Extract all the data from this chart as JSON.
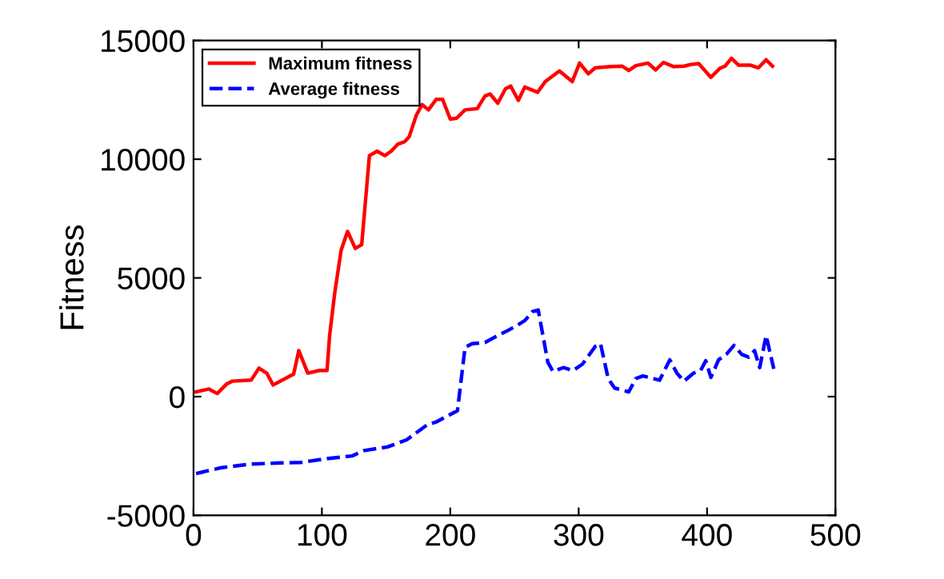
{
  "chart_data": {
    "type": "line",
    "ylabel": "Fitness",
    "xlim": [
      0,
      500
    ],
    "ylim": [
      -5000,
      15000
    ],
    "xticks": [
      0,
      100,
      200,
      300,
      400,
      500
    ],
    "yticks": [
      -5000,
      0,
      5000,
      10000,
      15000
    ],
    "grid": false,
    "legend": "top left",
    "marker": "none",
    "series": [
      {
        "name": "Maximum fitness",
        "color": "#ff0000",
        "line_style": "solid",
        "x": [
          2,
          12,
          18.5,
          26,
          30,
          45,
          51,
          57,
          62,
          78,
          82,
          89,
          98,
          104,
          106,
          110,
          115,
          120,
          126,
          131,
          137,
          143,
          149,
          154,
          159,
          164.5,
          168,
          173.5,
          178,
          183,
          189,
          194,
          200,
          205,
          211.5,
          221,
          227,
          231,
          237,
          243,
          247,
          253,
          258,
          268,
          274,
          285,
          295,
          300.7,
          307.5,
          313,
          325,
          334,
          339,
          344.5,
          354,
          360,
          366,
          374,
          382,
          387.5,
          393.5,
          403,
          410,
          414,
          419,
          424.6,
          434,
          440,
          446,
          451
        ],
        "values": [
          200,
          320,
          130,
          540,
          650,
          700,
          1200,
          990,
          490,
          950,
          1940,
          990,
          1100,
          1100,
          2570,
          4370,
          6170,
          6960,
          6240,
          6400,
          10150,
          10340,
          10150,
          10340,
          10630,
          10740,
          10950,
          11850,
          12300,
          12080,
          12520,
          12520,
          11690,
          11730,
          12080,
          12130,
          12660,
          12750,
          12360,
          12970,
          13080,
          12480,
          13040,
          12820,
          13270,
          13720,
          13270,
          14050,
          13600,
          13850,
          13900,
          13920,
          13740,
          13940,
          14050,
          13760,
          14080,
          13900,
          13920,
          13990,
          14030,
          13450,
          13830,
          13920,
          14250,
          13960,
          13960,
          13850,
          14190,
          13920
        ]
      },
      {
        "name": "Average fitness",
        "color": "#0000ff",
        "line_style": "dashed",
        "x": [
          2,
          22,
          45,
          65,
          84,
          104,
          123.5,
          133,
          151,
          166,
          182,
          189,
          205.6,
          211.5,
          217,
          227,
          237,
          245,
          252.6,
          258,
          264,
          268.5,
          276,
          280,
          288,
          295.6,
          303,
          313,
          317,
          323,
          328,
          339,
          344.5,
          350,
          358,
          363,
          371,
          376.5,
          382,
          389.5,
          395,
          399,
          403,
          409,
          415,
          421,
          427,
          432.5,
          437,
          441,
          446,
          452
        ],
        "values": [
          -3240,
          -2990,
          -2840,
          -2800,
          -2770,
          -2610,
          -2500,
          -2270,
          -2120,
          -1820,
          -1190,
          -1070,
          -590,
          2070,
          2230,
          2280,
          2570,
          2790,
          3020,
          3200,
          3580,
          3650,
          1440,
          1060,
          1220,
          1100,
          1370,
          2120,
          2230,
          760,
          360,
          200,
          760,
          870,
          760,
          690,
          1550,
          990,
          650,
          990,
          1100,
          1510,
          810,
          1550,
          1780,
          2160,
          1780,
          1660,
          1940,
          1220,
          2570,
          1170
        ]
      }
    ]
  }
}
